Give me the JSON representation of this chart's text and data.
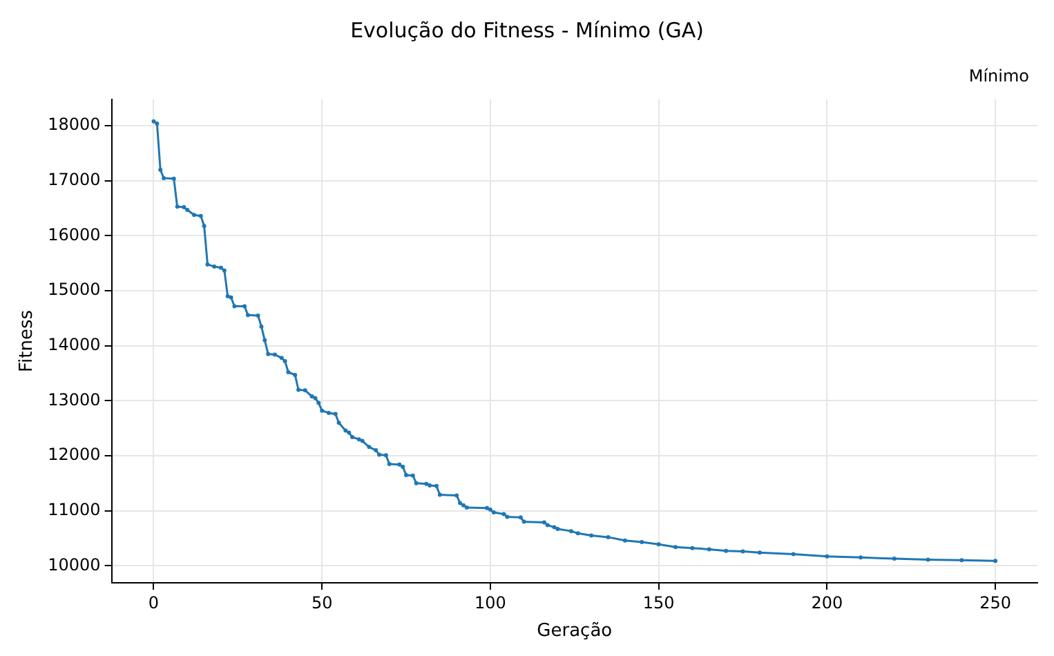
{
  "chart_data": {
    "type": "line",
    "title": "Evolução do Fitness - Mínimo (GA)",
    "xlabel": "Geração",
    "ylabel": "Fitness",
    "x": [
      0,
      1,
      2,
      3,
      6,
      7,
      9,
      10,
      12,
      14,
      15,
      16,
      18,
      20,
      21,
      22,
      23,
      24,
      27,
      28,
      31,
      32,
      33,
      34,
      36,
      38,
      39,
      40,
      42,
      43,
      45,
      47,
      48,
      49,
      50,
      52,
      54,
      55,
      57,
      58,
      59,
      61,
      62,
      64,
      66,
      67,
      69,
      70,
      73,
      74,
      75,
      77,
      78,
      81,
      82,
      84,
      85,
      90,
      91,
      92,
      93,
      99,
      100,
      101,
      104,
      105,
      109,
      110,
      116,
      117,
      119,
      120,
      124,
      126,
      130,
      135,
      140,
      145,
      150,
      155,
      160,
      165,
      170,
      175,
      180,
      190,
      200,
      210,
      220,
      230,
      240,
      250
    ],
    "series": [
      {
        "name": "Mínimo",
        "color": "#1f77b4",
        "values": [
          18080,
          18040,
          17200,
          17050,
          17040,
          16530,
          16520,
          16470,
          16380,
          16360,
          16180,
          15480,
          15440,
          15420,
          15370,
          14900,
          14880,
          14720,
          14720,
          14560,
          14550,
          14350,
          14100,
          13850,
          13840,
          13780,
          13720,
          13520,
          13470,
          13200,
          13190,
          13080,
          13050,
          12960,
          12820,
          12780,
          12760,
          12600,
          12460,
          12420,
          12340,
          12300,
          12270,
          12160,
          12100,
          12020,
          12010,
          11850,
          11840,
          11800,
          11650,
          11640,
          11500,
          11490,
          11460,
          11450,
          11290,
          11280,
          11140,
          11100,
          11060,
          11050,
          11020,
          10970,
          10940,
          10890,
          10880,
          10800,
          10790,
          10740,
          10700,
          10670,
          10630,
          10590,
          10550,
          10520,
          10460,
          10430,
          10390,
          10340,
          10320,
          10300,
          10270,
          10260,
          10240,
          10210,
          10170,
          10150,
          10130,
          10110,
          10100,
          10090
        ]
      }
    ],
    "xlim": [
      -12.5,
      262.5
    ],
    "xticks": [
      0,
      50,
      100,
      150,
      200,
      250
    ],
    "ylim": [
      9690,
      18480
    ],
    "yticks": [
      10000,
      11000,
      12000,
      13000,
      14000,
      15000,
      16000,
      17000,
      18000
    ],
    "grid": true,
    "legend": "top right",
    "marker": "circle",
    "line_style": "solid"
  }
}
